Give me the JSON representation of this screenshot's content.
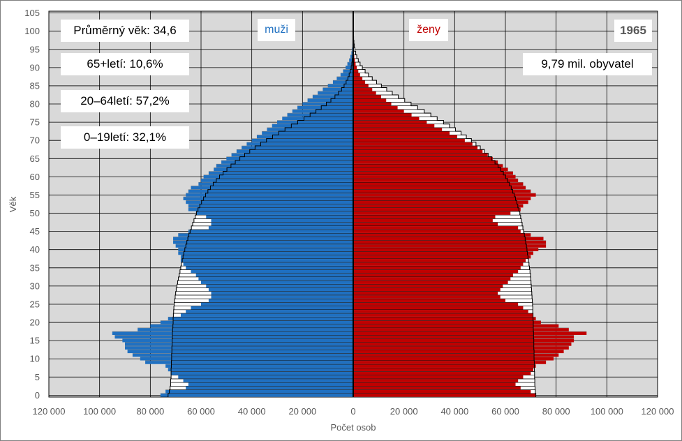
{
  "chart_data": {
    "type": "bar",
    "subtype": "population-pyramid",
    "xlabel": "Počet osob",
    "ylabel": "Věk",
    "x_range": [
      -120000,
      120000
    ],
    "y_range": [
      0,
      105
    ],
    "x_tick_labels": [
      "120 000",
      "100 000",
      "80 000",
      "60 000",
      "40 000",
      "20 000",
      "0",
      "20 000",
      "40 000",
      "60 000",
      "80 000",
      "100 000",
      "120 000"
    ],
    "y_tick_labels": [
      "0",
      "5",
      "10",
      "15",
      "20",
      "25",
      "30",
      "35",
      "40",
      "45",
      "50",
      "55",
      "60",
      "65",
      "70",
      "75",
      "80",
      "85",
      "90",
      "95",
      "100",
      "105"
    ],
    "grid": true,
    "colors": {
      "men": "#1f70c1",
      "women": "#c00000",
      "background": "#d9d9d9",
      "reference_fill": "#ffffff"
    },
    "ages": [
      0,
      1,
      2,
      3,
      4,
      5,
      6,
      7,
      8,
      9,
      10,
      11,
      12,
      13,
      14,
      15,
      16,
      17,
      18,
      19,
      20,
      21,
      22,
      23,
      24,
      25,
      26,
      27,
      28,
      29,
      30,
      31,
      32,
      33,
      34,
      35,
      36,
      37,
      38,
      39,
      40,
      41,
      42,
      43,
      44,
      45,
      46,
      47,
      48,
      49,
      50,
      51,
      52,
      53,
      54,
      55,
      56,
      57,
      58,
      59,
      60,
      61,
      62,
      63,
      64,
      65,
      66,
      67,
      68,
      69,
      70,
      71,
      72,
      73,
      74,
      75,
      76,
      77,
      78,
      79,
      80,
      81,
      82,
      83,
      84,
      85,
      86,
      87,
      88,
      89,
      90,
      91,
      92,
      93,
      94,
      95,
      96,
      97,
      98,
      99,
      100
    ],
    "series": [
      {
        "name": "muži",
        "values": [
          76000,
          74000,
          66000,
          65000,
          67000,
          69000,
          72000,
          73000,
          74000,
          82000,
          84000,
          87000,
          89000,
          90000,
          90000,
          91000,
          94000,
          95000,
          85000,
          80000,
          76000,
          73000,
          68000,
          66000,
          64000,
          60000,
          57000,
          56000,
          56000,
          57000,
          58000,
          60000,
          61000,
          62000,
          64000,
          66000,
          67000,
          68000,
          68000,
          69000,
          69000,
          70000,
          71000,
          71000,
          69000,
          65000,
          57000,
          56000,
          56000,
          58000,
          62000,
          65000,
          65000,
          66000,
          67000,
          66000,
          65000,
          64000,
          61000,
          60000,
          59000,
          57000,
          55000,
          54000,
          52000,
          50000,
          48000,
          46000,
          44000,
          42000,
          40000,
          38000,
          36000,
          34000,
          32000,
          30000,
          28000,
          26000,
          24000,
          22000,
          20000,
          18000,
          16000,
          14000,
          12000,
          10000,
          8000,
          6500,
          5000,
          4000,
          3000,
          2300,
          1600,
          1100,
          700,
          450,
          300,
          200,
          120,
          70,
          40
        ]
      },
      {
        "name": "ženy",
        "values": [
          72000,
          70000,
          66000,
          64000,
          65000,
          67000,
          70000,
          71000,
          72000,
          76000,
          79000,
          81000,
          83000,
          85000,
          86000,
          87000,
          87000,
          92000,
          85000,
          81000,
          74000,
          72000,
          71000,
          69000,
          67000,
          65000,
          60000,
          58000,
          57000,
          58000,
          59000,
          61000,
          62000,
          63000,
          65000,
          66000,
          67000,
          68000,
          70000,
          71000,
          73000,
          76000,
          76000,
          75000,
          70000,
          66000,
          65000,
          57000,
          55000,
          56000,
          62000,
          66000,
          67000,
          69000,
          70000,
          72000,
          70000,
          68000,
          67000,
          65000,
          64000,
          63000,
          61000,
          59000,
          57000,
          55000,
          53000,
          51000,
          49000,
          47000,
          44000,
          41000,
          38000,
          35000,
          32000,
          29000,
          26000,
          23000,
          20000,
          17500,
          15000,
          13000,
          11000,
          9000,
          7500,
          6000,
          4700,
          3600,
          2700,
          2000,
          1400,
          950,
          650,
          420,
          270,
          170,
          100,
          60,
          35,
          20,
          10
        ]
      }
    ],
    "reference_series": {
      "name": "",
      "men_values": [
        73000,
        72500,
        72200,
        72000,
        72000,
        71800,
        71800,
        71800,
        71700,
        71700,
        71600,
        71600,
        71500,
        71500,
        71400,
        71400,
        71300,
        71300,
        71200,
        71100,
        71000,
        71000,
        70900,
        70800,
        70700,
        70600,
        70400,
        70200,
        70000,
        69800,
        69500,
        69200,
        68900,
        68600,
        68300,
        68000,
        67700,
        67400,
        67100,
        66800,
        66400,
        66000,
        65600,
        65200,
        64800,
        64300,
        63800,
        63300,
        62800,
        62300,
        61800,
        61200,
        60500,
        59800,
        59000,
        58200,
        57300,
        56300,
        55200,
        54000,
        52700,
        51300,
        49800,
        48200,
        46500,
        44700,
        42800,
        40800,
        38700,
        36500,
        34200,
        31800,
        29400,
        26900,
        24400,
        21900,
        19400,
        17000,
        14700,
        12600,
        10600,
        8800,
        7200,
        5800,
        4600,
        3600,
        2800,
        2100,
        1600,
        1150,
        800,
        550,
        370,
        240,
        150,
        90,
        55,
        30,
        17,
        9,
        5
      ],
      "women_values": [
        72000,
        71800,
        71700,
        71600,
        71600,
        71500,
        71500,
        71400,
        71400,
        71400,
        71300,
        71300,
        71300,
        71200,
        71200,
        71200,
        71100,
        71100,
        71000,
        71000,
        71000,
        70900,
        70900,
        70800,
        70800,
        70700,
        70600,
        70500,
        70400,
        70300,
        70200,
        70100,
        70000,
        69900,
        69700,
        69500,
        69300,
        69100,
        68900,
        68700,
        68500,
        68300,
        68000,
        67800,
        67500,
        67200,
        66900,
        66600,
        66300,
        66000,
        65700,
        65300,
        64900,
        64500,
        64000,
        63500,
        62900,
        62300,
        61600,
        60900,
        60100,
        59200,
        58200,
        57100,
        55900,
        54600,
        53200,
        51700,
        50100,
        48400,
        46600,
        44600,
        42500,
        40300,
        38000,
        35600,
        33100,
        30600,
        28000,
        25400,
        22800,
        20300,
        17800,
        15400,
        13200,
        11100,
        9200,
        7500,
        6000,
        4700,
        3600,
        2700,
        2000,
        1400,
        980,
        660,
        430,
        270,
        160,
        90,
        50
      ]
    },
    "annotations": {
      "mean_age": "Průměrný věk: 34,6",
      "share_65_plus": "65+letí: 10,6%",
      "share_20_64": "20–64letí: 57,2%",
      "share_0_19": "0–19letí: 32,1%",
      "men_label": "muži",
      "women_label": "ženy",
      "year": "1965",
      "population": "9,79 mil. obyvatel"
    }
  }
}
